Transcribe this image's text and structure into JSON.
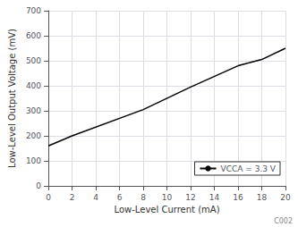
{
  "chart_data": {
    "type": "line",
    "xlabel": "Low-Level Current (mA)",
    "ylabel": "Low-Level Output Voltage (mV)",
    "x": [
      0,
      2,
      8,
      12,
      16,
      18,
      20
    ],
    "series": [
      {
        "name": "VCCA = 3.3 V",
        "color": "#000000",
        "values": [
          160,
          200,
          305,
          395,
          480,
          505,
          550
        ]
      }
    ],
    "xlim": [
      0,
      20
    ],
    "ylim": [
      0,
      700
    ],
    "xticks": [
      0,
      2,
      4,
      6,
      8,
      10,
      12,
      14,
      16,
      18,
      20
    ],
    "yticks": [
      0,
      100,
      200,
      300,
      400,
      500,
      600,
      700
    ],
    "grid": true,
    "legend": "lower right",
    "annotation": "C002"
  }
}
